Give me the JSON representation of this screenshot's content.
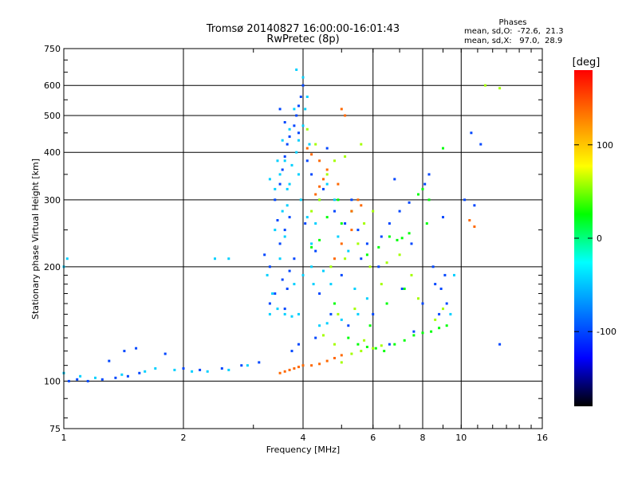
{
  "chart_data": {
    "type": "scatter",
    "title_line1": "Tromsø 20140827 16:00:00-16:01:43",
    "title_line2": "RwPretec (8p)",
    "phases": {
      "heading": "Phases",
      "line_o": "mean, sd,O:  -72.6,  21.3",
      "line_x": "mean, sd,X:   97.0,  28.9"
    },
    "xlabel": "Frequency [MHz]",
    "ylabel": "Stationary phase Virtual Height [km]",
    "x_scale": "log",
    "y_scale": "log",
    "xlim": [
      1,
      16
    ],
    "ylim": [
      75,
      750
    ],
    "x_ticks": [
      1,
      2,
      4,
      6,
      8,
      10,
      16
    ],
    "y_ticks": [
      75,
      100,
      200,
      300,
      400,
      500,
      600,
      750
    ],
    "x_grid": [
      2,
      4,
      6,
      8,
      10
    ],
    "y_grid": [
      100,
      200,
      300,
      400,
      500,
      600
    ],
    "grid": true,
    "colorbar": {
      "label": "[deg]",
      "range": [
        -180,
        180
      ],
      "ticks": [
        100,
        0,
        -100
      ],
      "colors": [
        "#ff0000",
        "#ff8000",
        "#ffff00",
        "#00ff00",
        "#00ffff",
        "#0080ff",
        "#0000ff",
        "#000000"
      ]
    },
    "series": [
      {
        "phase": -95,
        "points": [
          [
            1.03,
            100
          ],
          [
            1.08,
            101
          ],
          [
            1.15,
            100
          ],
          [
            1.25,
            101
          ],
          [
            1.35,
            102
          ],
          [
            1.45,
            103
          ],
          [
            1.55,
            105
          ],
          [
            1.3,
            113
          ],
          [
            1.42,
            120
          ],
          [
            1.52,
            122
          ],
          [
            1.8,
            118
          ],
          [
            2.0,
            108
          ],
          [
            2.2,
            107
          ],
          [
            2.5,
            108
          ],
          [
            2.8,
            110
          ],
          [
            3.1,
            112
          ],
          [
            3.3,
            160
          ],
          [
            3.4,
            170
          ],
          [
            3.55,
            185
          ],
          [
            3.7,
            195
          ],
          [
            3.8,
            210
          ],
          [
            3.2,
            215
          ],
          [
            3.5,
            230
          ],
          [
            3.6,
            250
          ],
          [
            3.7,
            270
          ],
          [
            3.4,
            300
          ],
          [
            3.5,
            330
          ],
          [
            3.55,
            360
          ],
          [
            3.6,
            390
          ],
          [
            3.65,
            420
          ],
          [
            3.7,
            440
          ],
          [
            3.8,
            470
          ],
          [
            3.85,
            500
          ],
          [
            3.9,
            530
          ],
          [
            3.95,
            560
          ],
          [
            4.0,
            600
          ],
          [
            3.6,
            480
          ],
          [
            3.5,
            520
          ],
          [
            4.1,
            380
          ],
          [
            4.2,
            350
          ],
          [
            4.5,
            320
          ],
          [
            4.8,
            280
          ],
          [
            5.1,
            260
          ],
          [
            5.5,
            250
          ],
          [
            5.8,
            230
          ],
          [
            6.3,
            240
          ],
          [
            6.6,
            260
          ],
          [
            7.0,
            280
          ],
          [
            7.4,
            295
          ],
          [
            7.8,
            310
          ],
          [
            8.1,
            330
          ],
          [
            8.3,
            350
          ],
          [
            8.6,
            180
          ],
          [
            8.9,
            175
          ],
          [
            9.1,
            190
          ],
          [
            9.2,
            160
          ],
          [
            8.8,
            150
          ],
          [
            7.6,
            135
          ],
          [
            6.6,
            125
          ],
          [
            5.2,
            140
          ],
          [
            4.7,
            150
          ],
          [
            4.3,
            130
          ],
          [
            3.9,
            125
          ],
          [
            3.75,
            120
          ],
          [
            3.6,
            155
          ],
          [
            3.65,
            175
          ],
          [
            4.4,
            170
          ],
          [
            5.0,
            190
          ],
          [
            5.6,
            210
          ],
          [
            6.2,
            200
          ],
          [
            7.1,
            175
          ],
          [
            8.0,
            160
          ],
          [
            10.2,
            300
          ],
          [
            10.8,
            290
          ],
          [
            12.5,
            125
          ],
          [
            10.6,
            450
          ],
          [
            11.2,
            420
          ],
          [
            3.3,
            200
          ],
          [
            3.45,
            265
          ],
          [
            3.9,
            450
          ],
          [
            4.05,
            260
          ],
          [
            4.3,
            220
          ],
          [
            6.8,
            340
          ],
          [
            7.5,
            230
          ],
          [
            8.5,
            200
          ],
          [
            5.3,
            300
          ],
          [
            4.6,
            410
          ],
          [
            6.0,
            150
          ],
          [
            9.0,
            270
          ]
        ]
      },
      {
        "phase": -55,
        "points": [
          [
            1.0,
            105
          ],
          [
            1.1,
            103
          ],
          [
            1.2,
            102
          ],
          [
            1.4,
            104
          ],
          [
            1.6,
            106
          ],
          [
            1.7,
            108
          ],
          [
            1.9,
            107
          ],
          [
            2.1,
            106
          ],
          [
            2.3,
            106
          ],
          [
            2.6,
            107
          ],
          [
            2.9,
            110
          ],
          [
            3.3,
            150
          ],
          [
            3.45,
            155
          ],
          [
            3.6,
            150
          ],
          [
            3.75,
            148
          ],
          [
            3.9,
            150
          ],
          [
            3.35,
            170
          ],
          [
            3.5,
            210
          ],
          [
            3.6,
            240
          ],
          [
            3.65,
            290
          ],
          [
            3.7,
            330
          ],
          [
            3.75,
            370
          ],
          [
            3.85,
            400
          ],
          [
            3.9,
            430
          ],
          [
            4.0,
            470
          ],
          [
            4.05,
            520
          ],
          [
            4.1,
            560
          ],
          [
            3.55,
            430
          ],
          [
            3.45,
            380
          ],
          [
            3.5,
            350
          ],
          [
            3.95,
            300
          ],
          [
            4.1,
            270
          ],
          [
            4.2,
            230
          ],
          [
            4.3,
            260
          ],
          [
            4.4,
            300
          ],
          [
            4.6,
            330
          ],
          [
            4.8,
            300
          ],
          [
            4.9,
            240
          ],
          [
            5.2,
            220
          ],
          [
            3.8,
            180
          ],
          [
            4.0,
            190
          ],
          [
            4.2,
            200
          ],
          [
            4.5,
            195
          ],
          [
            4.7,
            180
          ],
          [
            4.4,
            140
          ],
          [
            4.6,
            142
          ],
          [
            5.0,
            145
          ],
          [
            5.5,
            150
          ],
          [
            3.4,
            250
          ],
          [
            3.55,
            280
          ],
          [
            3.65,
            320
          ],
          [
            3.4,
            320
          ],
          [
            3.3,
            340
          ],
          [
            3.6,
            380
          ],
          [
            3.9,
            350
          ],
          [
            4.0,
            630
          ],
          [
            3.85,
            660
          ],
          [
            2.4,
            210
          ],
          [
            2.6,
            210
          ],
          [
            1.0,
            200
          ],
          [
            1.02,
            210
          ],
          [
            3.25,
            190
          ],
          [
            3.7,
            460
          ],
          [
            3.8,
            520
          ],
          [
            4.15,
            420
          ],
          [
            4.25,
            180
          ],
          [
            5.4,
            175
          ],
          [
            5.8,
            165
          ],
          [
            9.6,
            190
          ],
          [
            9.4,
            150
          ]
        ]
      },
      {
        "phase": 30,
        "points": [
          [
            5.2,
            130
          ],
          [
            5.5,
            125
          ],
          [
            5.8,
            123
          ],
          [
            6.1,
            122
          ],
          [
            6.4,
            120
          ],
          [
            6.8,
            125
          ],
          [
            7.2,
            128
          ],
          [
            7.6,
            132
          ],
          [
            8.0,
            134
          ],
          [
            8.4,
            135
          ],
          [
            8.8,
            138
          ],
          [
            9.2,
            140
          ],
          [
            6.6,
            240
          ],
          [
            6.9,
            235
          ],
          [
            7.1,
            238
          ],
          [
            7.4,
            245
          ],
          [
            7.8,
            310
          ],
          [
            8.0,
            320
          ],
          [
            8.3,
            300
          ],
          [
            5.8,
            215
          ],
          [
            6.2,
            225
          ],
          [
            4.2,
            225
          ],
          [
            4.4,
            235
          ],
          [
            5.0,
            260
          ],
          [
            5.3,
            280
          ],
          [
            4.6,
            270
          ],
          [
            4.9,
            300
          ],
          [
            9.0,
            410
          ],
          [
            8.2,
            260
          ],
          [
            7.2,
            175
          ],
          [
            6.5,
            160
          ],
          [
            5.9,
            140
          ],
          [
            4.8,
            160
          ]
        ]
      },
      {
        "phase": 80,
        "points": [
          [
            5.0,
            112
          ],
          [
            5.3,
            118
          ],
          [
            5.6,
            120
          ],
          [
            6.0,
            122
          ],
          [
            6.3,
            124
          ],
          [
            5.7,
            128
          ],
          [
            4.8,
            125
          ],
          [
            4.5,
            132
          ],
          [
            4.9,
            150
          ],
          [
            5.4,
            155
          ],
          [
            5.1,
            210
          ],
          [
            5.5,
            230
          ],
          [
            5.7,
            260
          ],
          [
            6.0,
            280
          ],
          [
            4.2,
            280
          ],
          [
            4.4,
            300
          ],
          [
            4.6,
            350
          ],
          [
            4.8,
            380
          ],
          [
            5.1,
            390
          ],
          [
            5.6,
            420
          ],
          [
            4.3,
            420
          ],
          [
            4.1,
            460
          ],
          [
            6.5,
            205
          ],
          [
            7.0,
            215
          ],
          [
            7.5,
            190
          ],
          [
            8.6,
            145
          ],
          [
            9.0,
            155
          ],
          [
            11.5,
            600
          ],
          [
            12.5,
            590
          ],
          [
            6.3,
            180
          ],
          [
            5.9,
            200
          ],
          [
            4.7,
            200
          ],
          [
            7.8,
            165
          ]
        ]
      },
      {
        "phase": 150,
        "points": [
          [
            3.5,
            105
          ],
          [
            3.6,
            106
          ],
          [
            3.7,
            107
          ],
          [
            3.8,
            108
          ],
          [
            3.9,
            109
          ],
          [
            4.0,
            110
          ],
          [
            4.2,
            110
          ],
          [
            4.4,
            111
          ],
          [
            4.6,
            113
          ],
          [
            4.8,
            115
          ],
          [
            5.0,
            117
          ],
          [
            4.3,
            310
          ],
          [
            4.4,
            325
          ],
          [
            4.5,
            340
          ],
          [
            4.6,
            360
          ],
          [
            4.4,
            380
          ],
          [
            4.2,
            395
          ],
          [
            4.1,
            410
          ],
          [
            4.8,
            210
          ],
          [
            5.0,
            230
          ],
          [
            5.3,
            280
          ],
          [
            5.5,
            300
          ],
          [
            5.6,
            290
          ],
          [
            5.3,
            250
          ],
          [
            4.9,
            330
          ],
          [
            5.0,
            520
          ],
          [
            5.1,
            500
          ],
          [
            10.5,
            265
          ],
          [
            10.8,
            255
          ]
        ]
      }
    ]
  }
}
